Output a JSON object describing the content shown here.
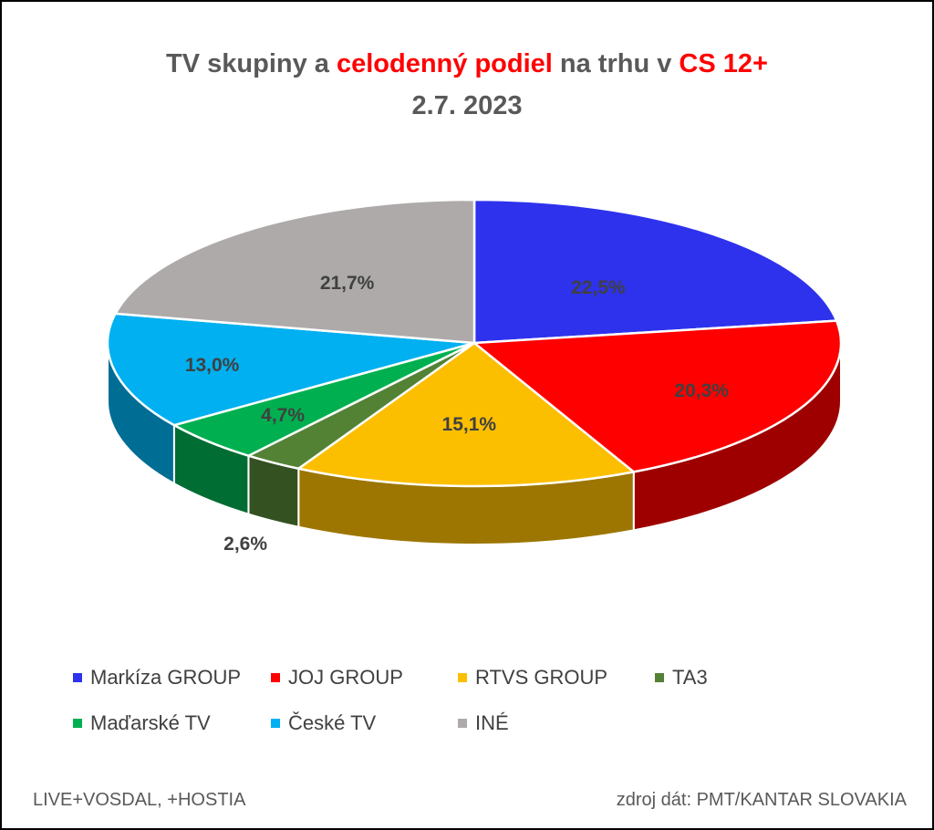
{
  "title": {
    "part1": "TV skupiny a ",
    "part2": "celodenný podiel",
    "part3": " na trhu v ",
    "part4": "CS 12+",
    "line2": "2.7. 2023"
  },
  "chart_data": {
    "type": "pie",
    "style": "3d",
    "categories": [
      "Markíza GROUP",
      "JOJ GROUP",
      "RTVS GROUP",
      "TA3",
      "Maďarské  TV",
      "České  TV",
      "INÉ"
    ],
    "values": [
      22.5,
      20.3,
      15.1,
      2.6,
      4.7,
      13.0,
      21.7
    ],
    "data_labels": [
      "22,5%",
      "20,3%",
      "15,1%",
      "2,6%",
      "4,7%",
      "13,0%",
      "21,7%"
    ],
    "colors": [
      "#2e32ed",
      "#ff0000",
      "#fcbf00",
      "#538235",
      "#00b050",
      "#00b0f0",
      "#aeaaaa"
    ],
    "legend_position": "bottom"
  },
  "legend": {
    "items": [
      "Markíza GROUP",
      "JOJ GROUP",
      "RTVS GROUP",
      "TA3",
      "Maďarské  TV",
      "České  TV",
      "INÉ"
    ]
  },
  "footer": {
    "left": "LIVE+VOSDAL,  +HOSTIA",
    "right": "zdroj dát: PMT/KANTAR SLOVAKIA"
  }
}
